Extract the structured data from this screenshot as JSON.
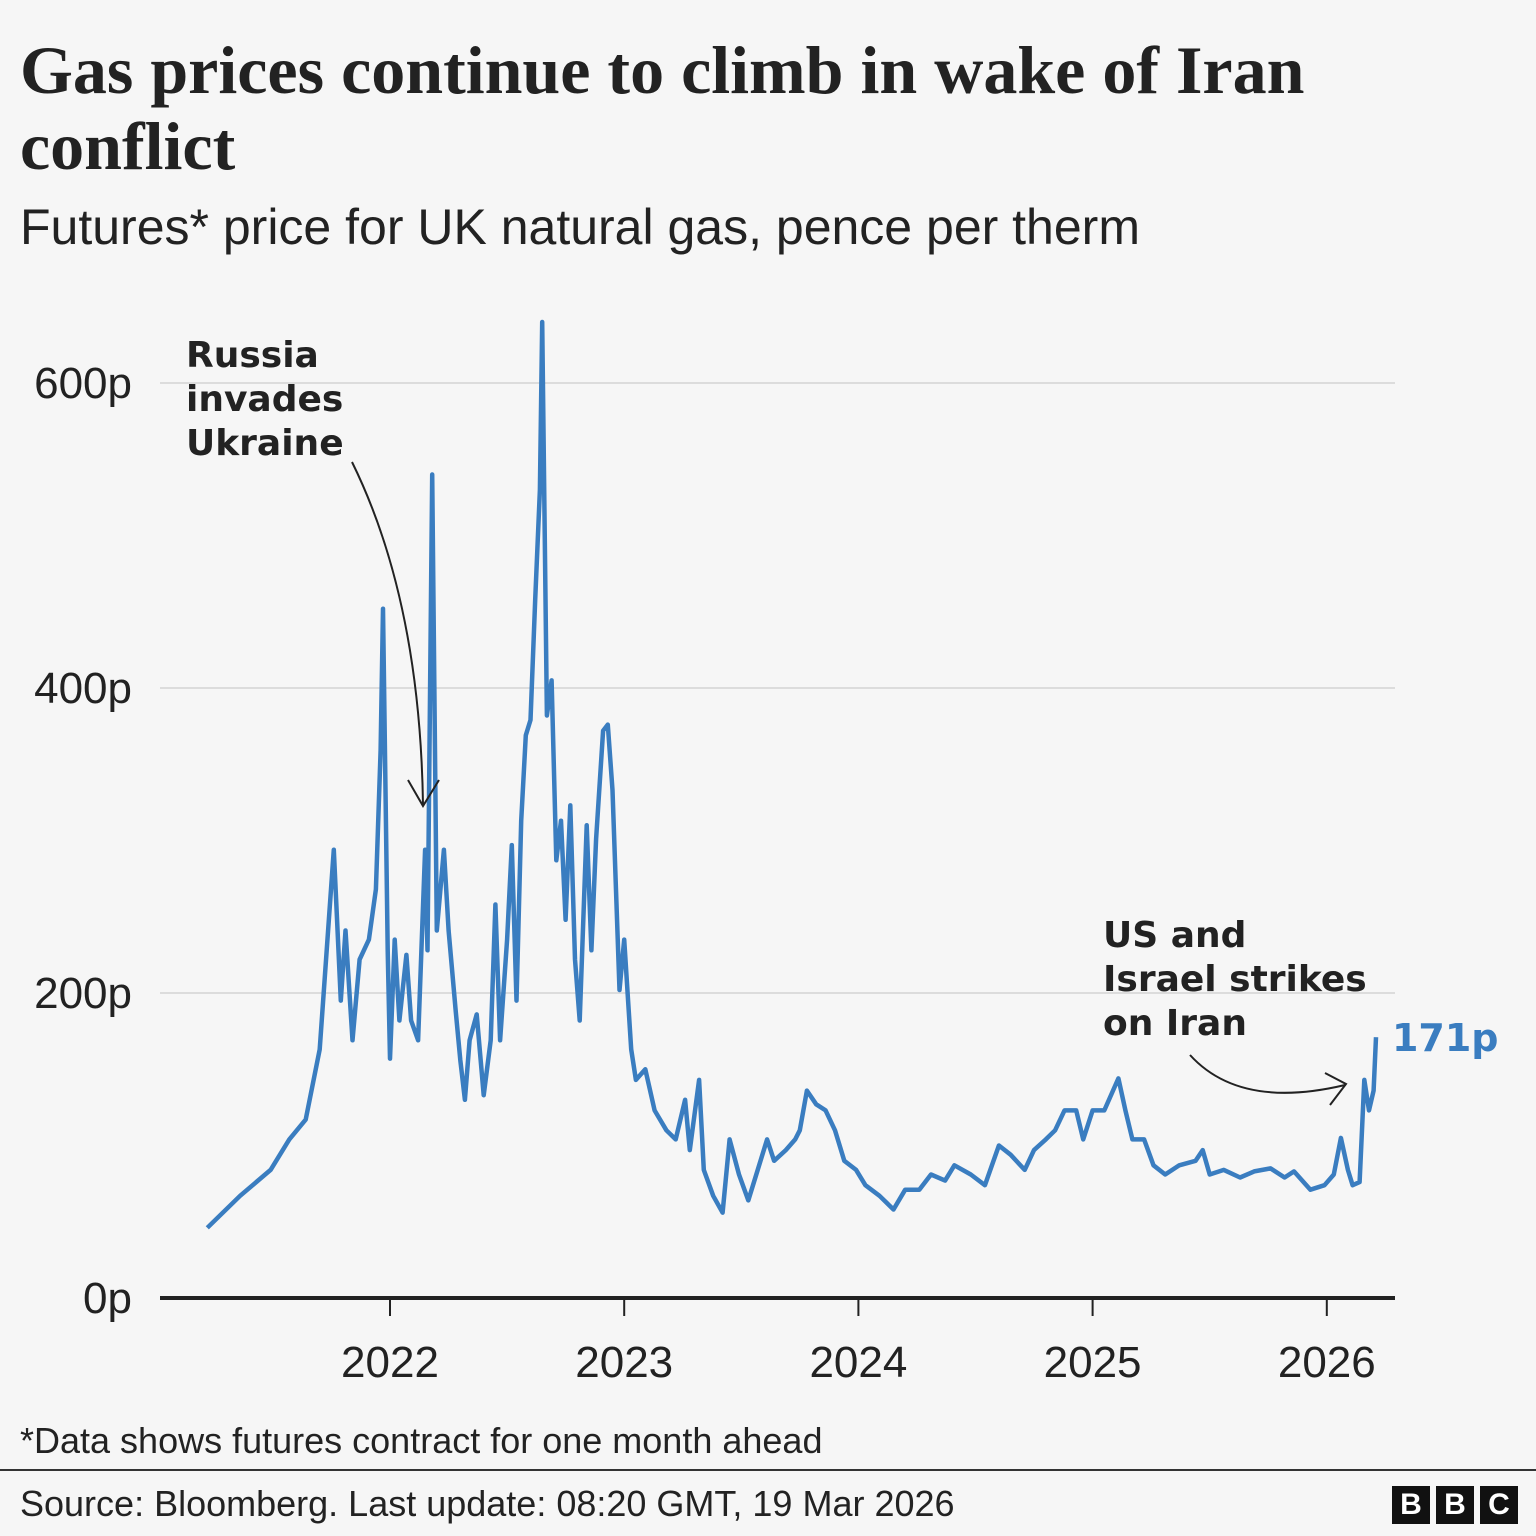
{
  "title": "Gas prices continue to climb in wake of Iran conflict",
  "subtitle": "Futures* price for UK natural gas, pence per therm",
  "footnote": "*Data shows futures contract for one month ahead",
  "source": "Source: Bloomberg. Last update: 08:20 GMT, 19 Mar 2026",
  "logo": [
    "B",
    "B",
    "C"
  ],
  "chart_data": {
    "type": "line",
    "title": "Gas prices continue to climb in wake of Iran conflict",
    "subtitle": "Futures* price for UK natural gas, pence per therm",
    "xlabel": "",
    "ylabel": "",
    "xlim": [
      2021.02,
      2026.29
    ],
    "ylim": [
      0,
      650
    ],
    "grid": true,
    "line_color": "#3a7dc0",
    "x_ticks": [
      {
        "value": 2022,
        "label": "2022"
      },
      {
        "value": 2023,
        "label": "2023"
      },
      {
        "value": 2024,
        "label": "2024"
      },
      {
        "value": 2025,
        "label": "2025"
      },
      {
        "value": 2026,
        "label": "2026"
      }
    ],
    "y_ticks": [
      {
        "value": 0,
        "label": "0p"
      },
      {
        "value": 200,
        "label": "200p"
      },
      {
        "value": 400,
        "label": "400p"
      },
      {
        "value": 600,
        "label": "600p"
      }
    ],
    "annotations": [
      {
        "lines": [
          "Russia",
          "invades",
          "Ukraine"
        ],
        "target_x": 2022.15,
        "target_y": 320
      },
      {
        "lines": [
          "US and",
          "Israel strikes",
          "on Iran"
        ],
        "target_x": 2026.12,
        "target_y": 135
      }
    ],
    "last_value_label": "171p",
    "x": [
      2021.22,
      2021.36,
      2021.49,
      2021.57,
      2021.64,
      2021.7,
      2021.76,
      2021.79,
      2021.81,
      2021.84,
      2021.87,
      2021.91,
      2021.94,
      2021.96,
      2021.97,
      2021.99,
      2022.0,
      2022.02,
      2022.04,
      2022.07,
      2022.09,
      2022.12,
      2022.15,
      2022.16,
      2022.18,
      2022.2,
      2022.23,
      2022.25,
      2022.28,
      2022.3,
      2022.32,
      2022.34,
      2022.37,
      2022.4,
      2022.43,
      2022.45,
      2022.47,
      2022.5,
      2022.52,
      2022.54,
      2022.56,
      2022.58,
      2022.6,
      2022.62,
      2022.64,
      2022.65,
      2022.67,
      2022.69,
      2022.71,
      2022.73,
      2022.75,
      2022.77,
      2022.79,
      2022.81,
      2022.84,
      2022.86,
      2022.88,
      2022.91,
      2022.93,
      2022.95,
      2022.98,
      2023.0,
      2023.03,
      2023.05,
      2023.09,
      2023.13,
      2023.18,
      2023.22,
      2023.26,
      2023.28,
      2023.32,
      2023.34,
      2023.38,
      2023.42,
      2023.45,
      2023.49,
      2023.53,
      2023.57,
      2023.61,
      2023.64,
      2023.69,
      2023.73,
      2023.75,
      2023.78,
      2023.82,
      2023.86,
      2023.9,
      2023.94,
      2023.99,
      2024.03,
      2024.09,
      2024.15,
      2024.2,
      2024.26,
      2024.31,
      2024.37,
      2024.41,
      2024.48,
      2024.54,
      2024.6,
      2024.65,
      2024.71,
      2024.75,
      2024.8,
      2024.84,
      2024.88,
      2024.93,
      2024.96,
      2025.0,
      2025.05,
      2025.11,
      2025.14,
      2025.17,
      2025.22,
      2025.26,
      2025.31,
      2025.37,
      2025.44,
      2025.47,
      2025.5,
      2025.56,
      2025.63,
      2025.69,
      2025.76,
      2025.82,
      2025.86,
      2025.93,
      2025.99,
      2026.03,
      2026.06,
      2026.09,
      2026.11,
      2026.14,
      2026.16,
      2026.18,
      2026.2,
      2026.21
    ],
    "y": [
      46,
      67,
      84,
      104,
      117,
      163,
      294,
      195,
      241,
      169,
      222,
      235,
      268,
      359,
      452,
      228,
      157,
      235,
      182,
      225,
      182,
      169,
      294,
      228,
      540,
      241,
      294,
      241,
      189,
      156,
      130,
      169,
      186,
      133,
      169,
      258,
      169,
      235,
      297,
      195,
      313,
      369,
      379,
      458,
      530,
      640,
      382,
      405,
      287,
      313,
      248,
      323,
      222,
      182,
      310,
      228,
      301,
      372,
      376,
      333,
      202,
      235,
      163,
      143,
      150,
      123,
      110,
      104,
      130,
      97,
      143,
      84,
      67,
      56,
      104,
      81,
      64,
      84,
      104,
      90,
      97,
      104,
      110,
      136,
      127,
      123,
      110,
      90,
      84,
      74,
      67,
      58,
      71,
      71,
      81,
      77,
      87,
      81,
      74,
      100,
      94,
      84,
      97,
      104,
      110,
      123,
      123,
      104,
      123,
      123,
      144,
      123,
      104,
      104,
      87,
      81,
      87,
      90,
      97,
      81,
      84,
      79,
      83,
      85,
      79,
      83,
      71,
      74,
      81,
      105,
      84,
      74,
      76,
      143,
      123,
      136,
      171
    ]
  }
}
